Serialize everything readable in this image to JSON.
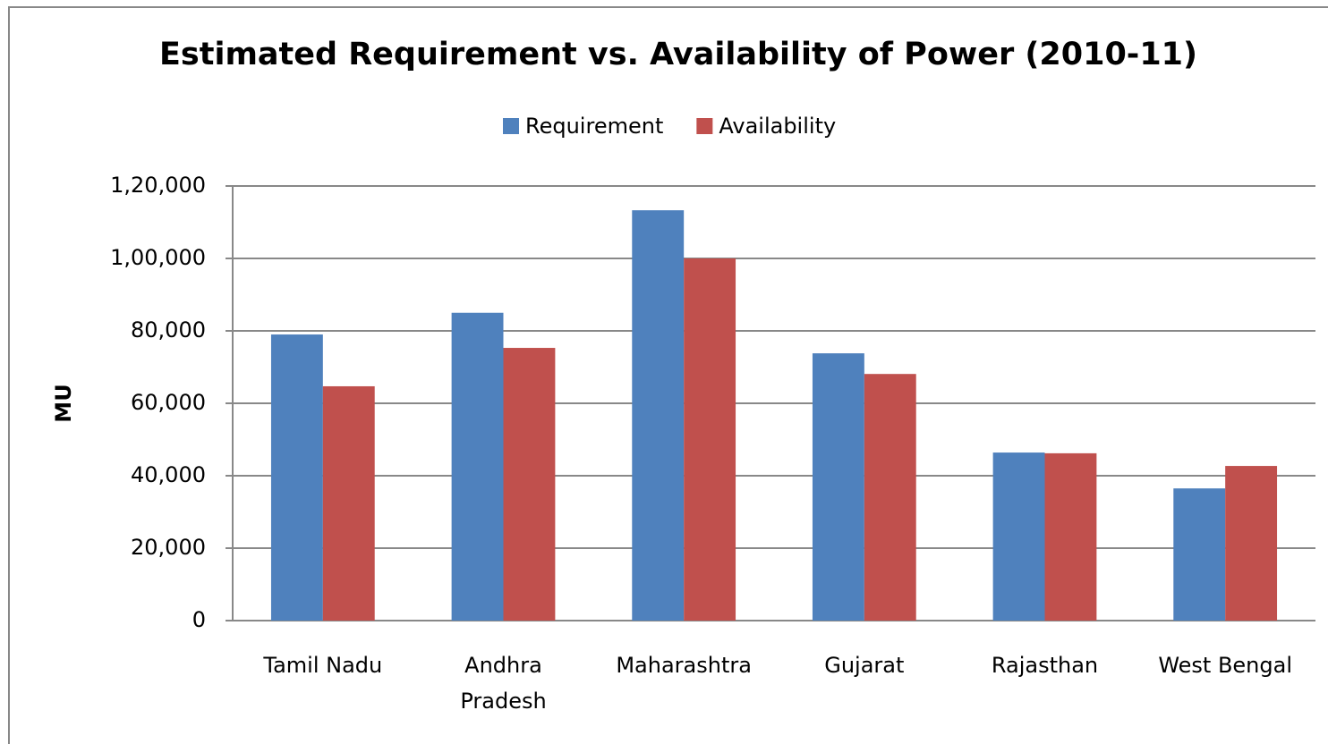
{
  "chart_data": {
    "type": "bar",
    "title": "Estimated Requirement vs. Availability of Power (2010-11)",
    "ylabel": "MU",
    "categories": [
      "Tamil Nadu",
      "Andhra Pradesh",
      "Maharashtra",
      "Gujarat",
      "Rajasthan",
      "West Bengal"
    ],
    "series": [
      {
        "name": "Requirement",
        "color": "#4f81bd",
        "values": [
          79000,
          85000,
          113300,
          73800,
          46400,
          36500
        ]
      },
      {
        "name": "Availability",
        "color": "#c0504d",
        "values": [
          64700,
          75300,
          100000,
          68100,
          46200,
          42700
        ]
      }
    ],
    "ylim": [
      0,
      120000
    ],
    "yticks": [
      0,
      {
        "value": 20000,
        "label": "20,000"
      },
      {
        "value": 40000,
        "label": "40,000"
      },
      {
        "value": 60000,
        "label": "60,000"
      },
      {
        "value": 80000,
        "label": "80,000"
      },
      {
        "value": 100000,
        "label": "1,00,000"
      },
      {
        "value": 120000,
        "label": "1,20,000"
      }
    ],
    "grid": true,
    "legend": "top"
  }
}
